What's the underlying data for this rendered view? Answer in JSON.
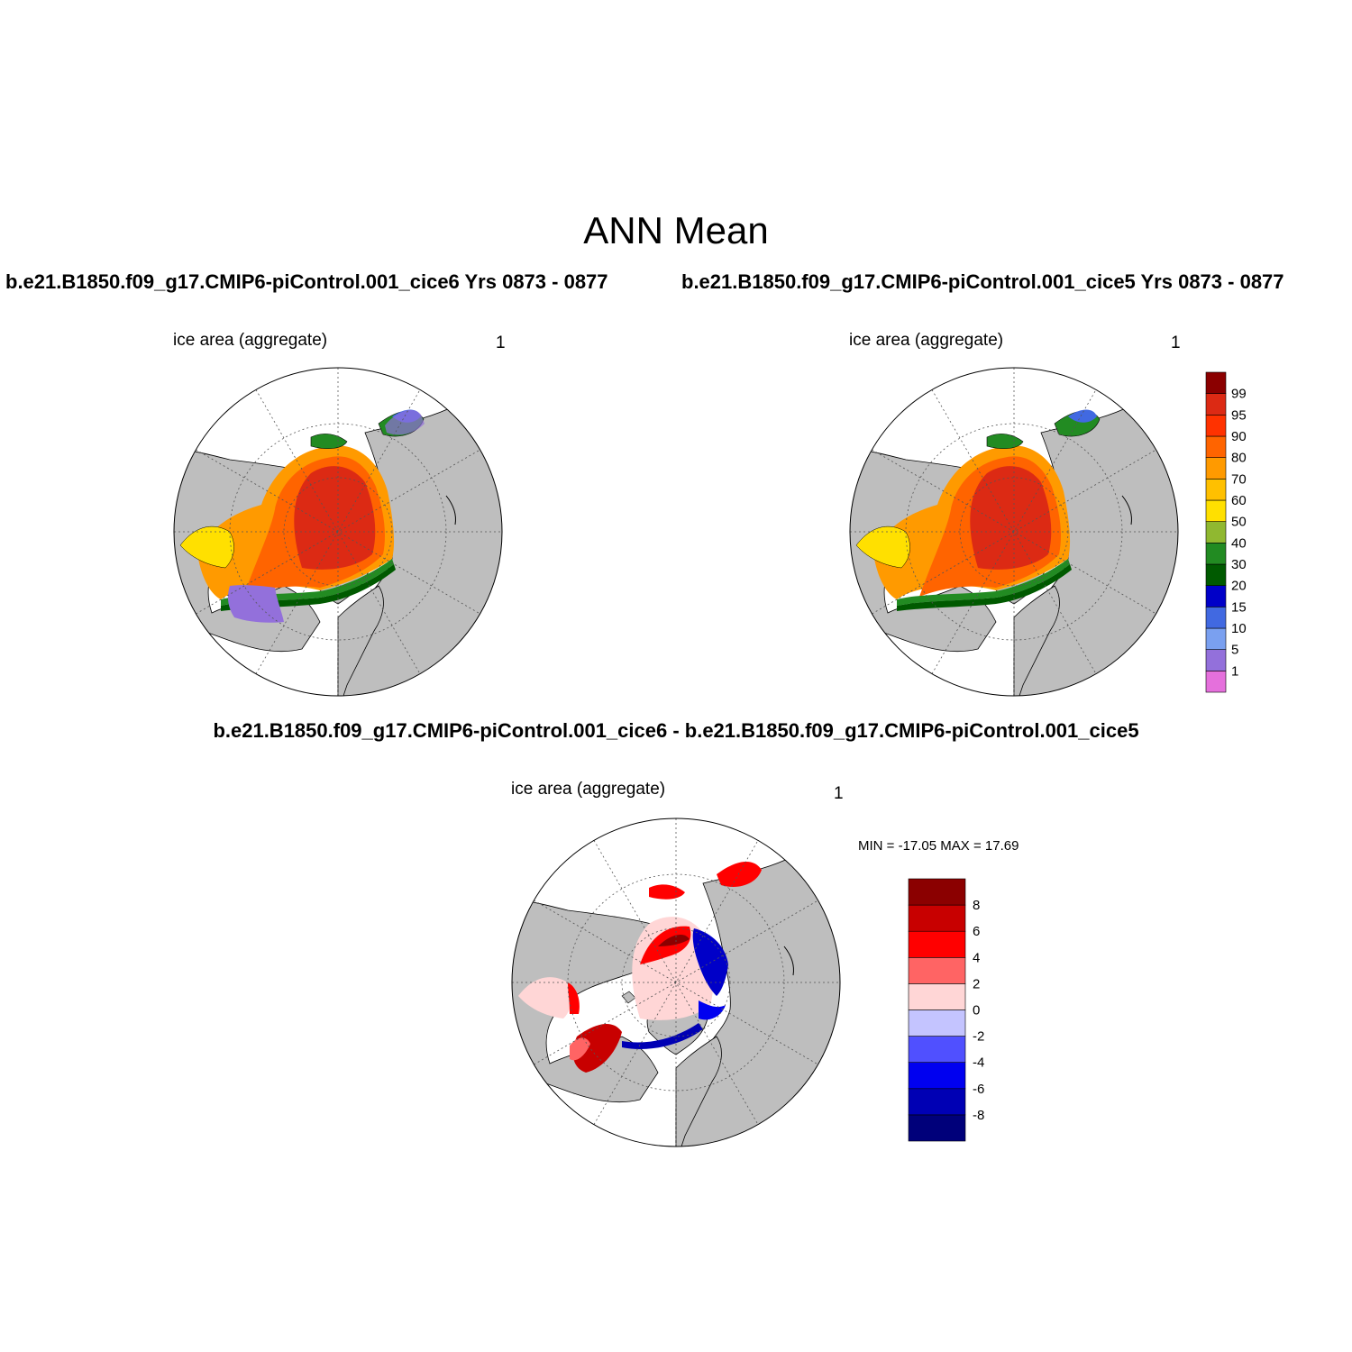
{
  "title": "ANN Mean",
  "panels": [
    {
      "run_title": "b.e21.B1850.f09_g17.CMIP6-piControl.001_cice6  Yrs 0873 - 0877",
      "variable": "ice area  (aggregate)",
      "units": "1"
    },
    {
      "run_title": "b.e21.B1850.f09_g17.CMIP6-piControl.001_cice5  Yrs 0873 - 0877",
      "variable": "ice area  (aggregate)",
      "units": "1"
    },
    {
      "run_title": "b.e21.B1850.f09_g17.CMIP6-piControl.001_cice6 - b.e21.B1850.f09_g17.CMIP6-piControl.001_cice5",
      "variable": "ice area  (aggregate)",
      "units": "1",
      "minmax": "MIN = -17.05 MAX =  17.69"
    }
  ],
  "colorbar_main": {
    "colors": [
      "#e570dc",
      "#9370db",
      "#7aa0f0",
      "#4169e1",
      "#0000c8",
      "#005a00",
      "#228b22",
      "#90b830",
      "#ffe000",
      "#ffc000",
      "#ff9a00",
      "#ff6400",
      "#ff3200",
      "#dc2a14",
      "#8b0000"
    ],
    "labels": [
      "1",
      "5",
      "10",
      "15",
      "20",
      "30",
      "40",
      "50",
      "60",
      "70",
      "80",
      "90",
      "95",
      "99"
    ]
  },
  "colorbar_diff": {
    "colors": [
      "#00007a",
      "#0000b4",
      "#0000f0",
      "#5050ff",
      "#c4c4ff",
      "#ffd6d6",
      "#ff6464",
      "#ff0000",
      "#c80000",
      "#8b0000"
    ],
    "labels": [
      "-8",
      "-6",
      "-4",
      "-2",
      "0",
      "2",
      "4",
      "6",
      "8"
    ]
  },
  "colors": {
    "land": "#bebebe",
    "ocean": "#ffffff"
  }
}
